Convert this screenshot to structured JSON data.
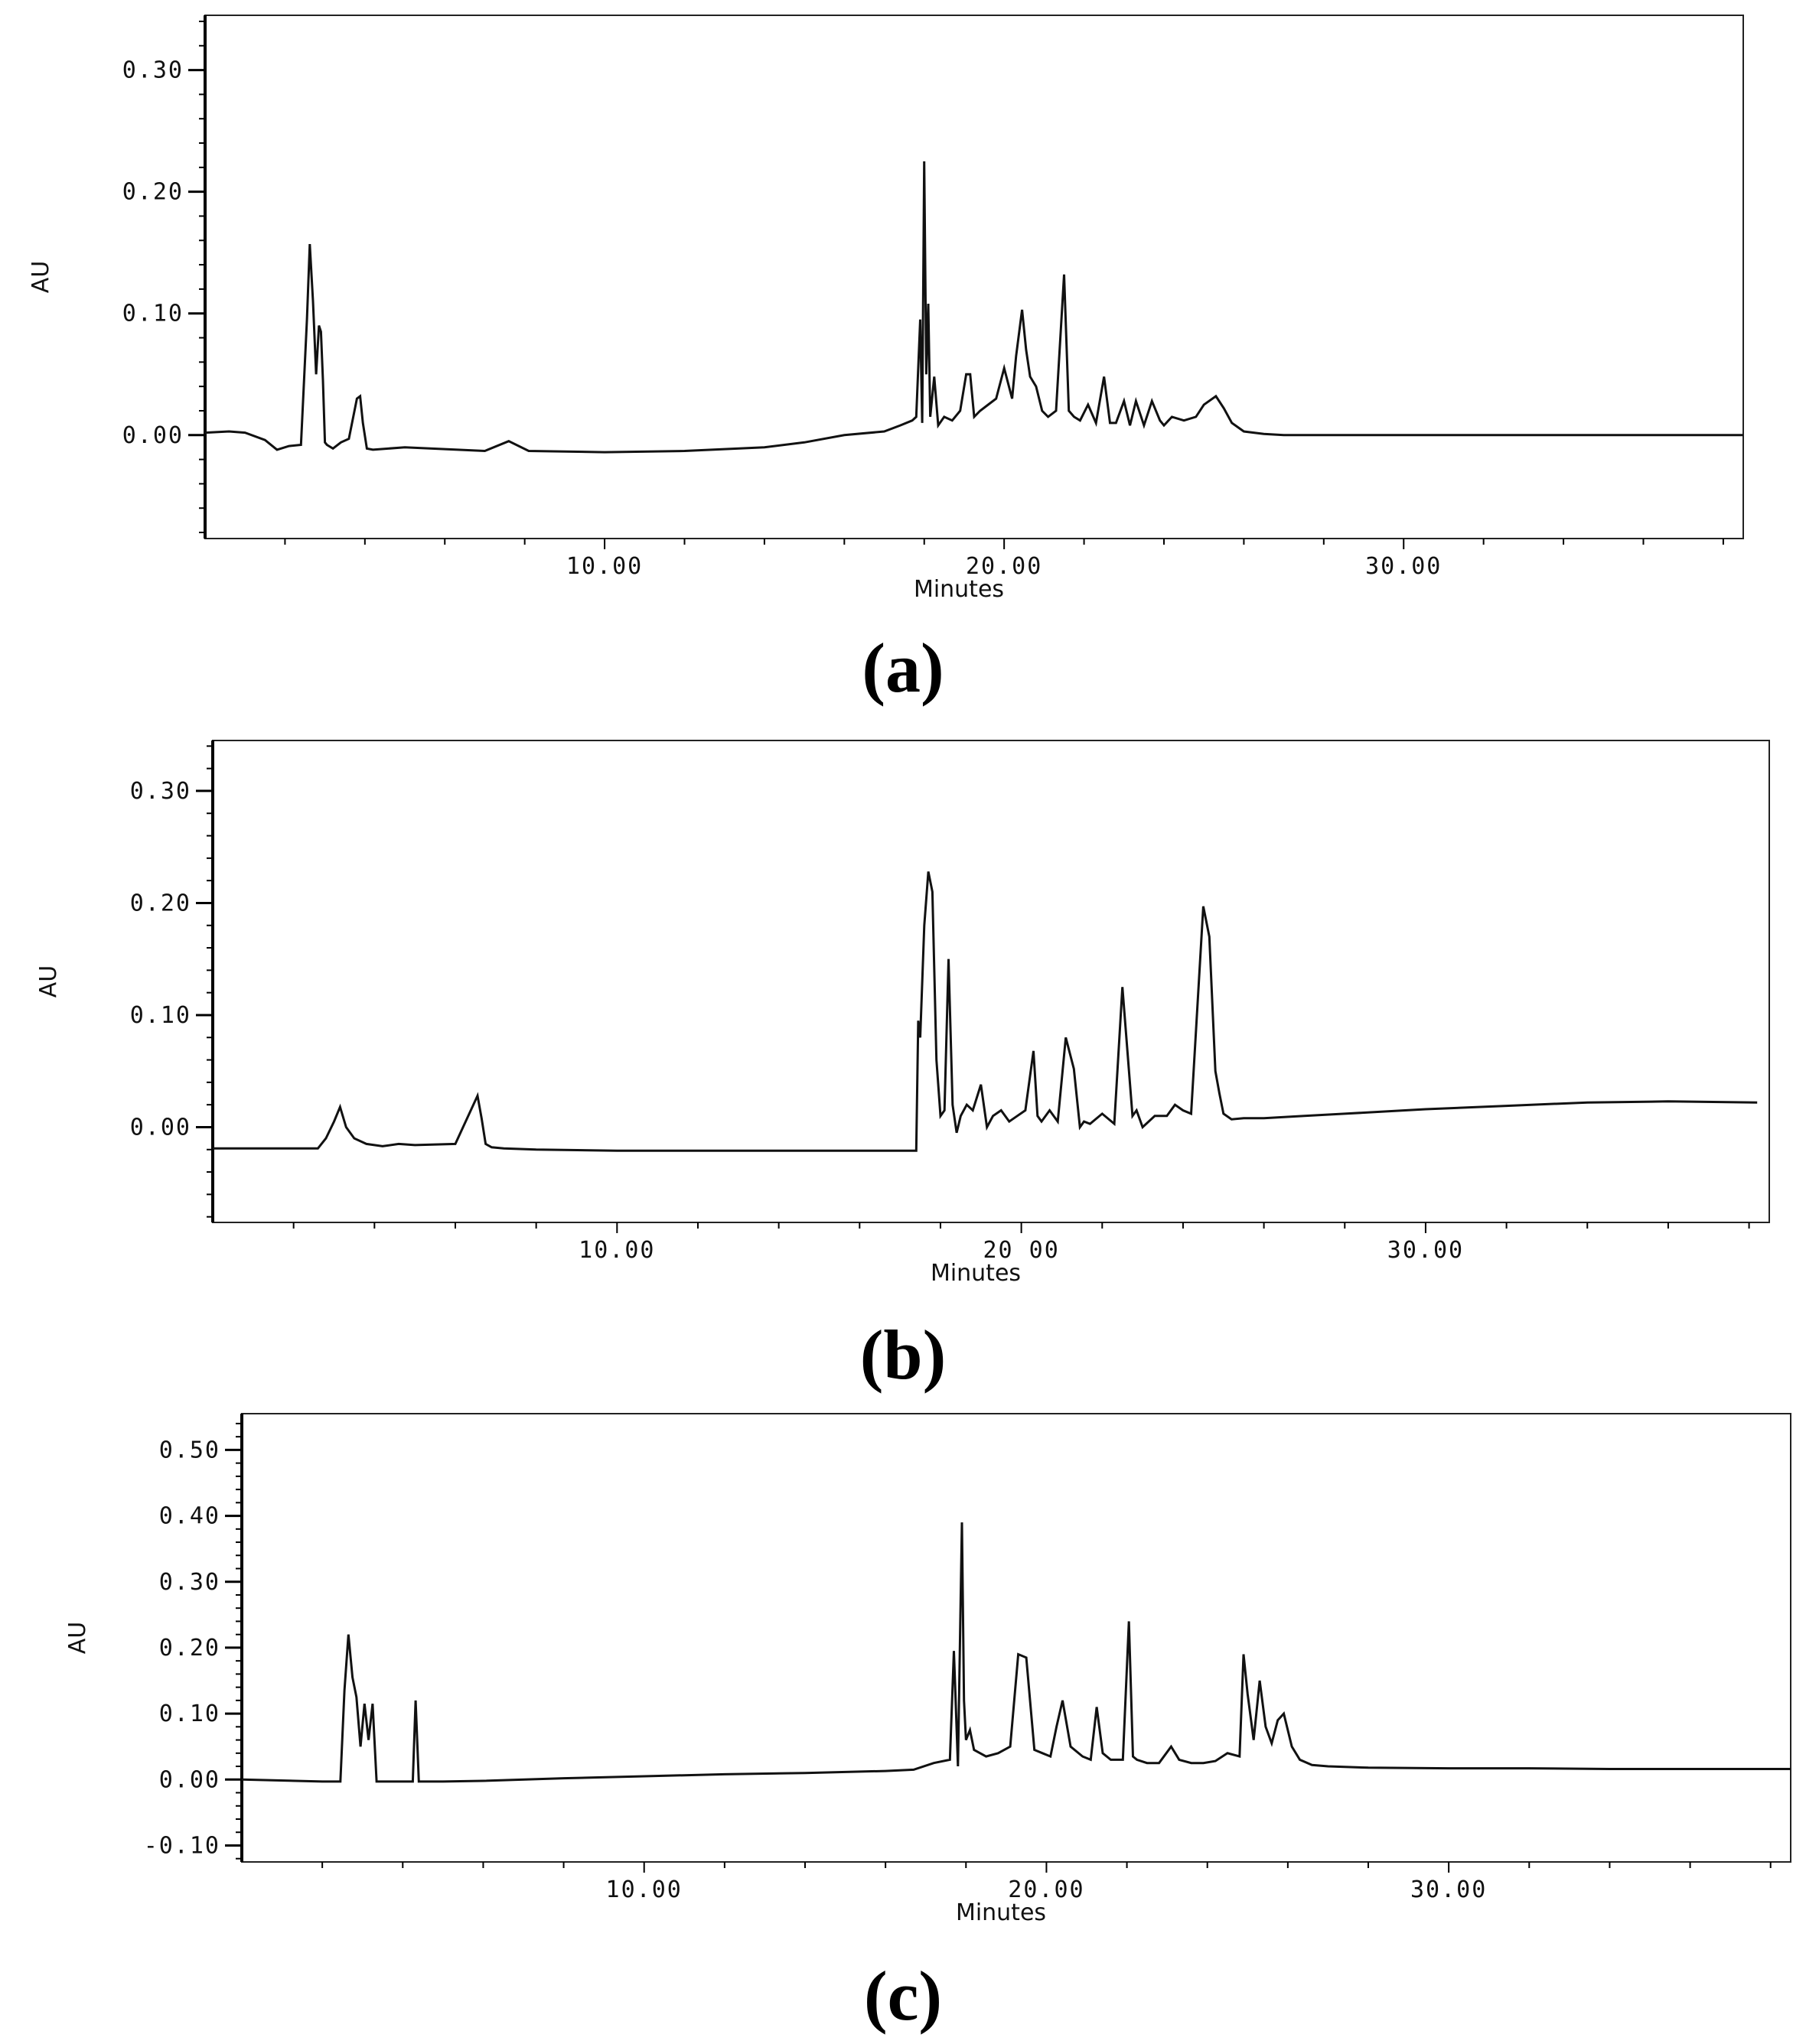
{
  "chart_data": [
    {
      "type": "line",
      "caption": "(a)",
      "xlabel": "Minutes",
      "ylabel": "AU",
      "xlim": [
        0,
        38.5
      ],
      "ylim": [
        -0.085,
        0.345
      ],
      "yticks": [
        0.0,
        0.1,
        0.2,
        0.3
      ],
      "ytick_labels": [
        "0.00",
        "0.10",
        "0.20",
        "0.30"
      ],
      "xticks": [
        10,
        20,
        30
      ],
      "xtick_labels": [
        "10.00",
        "20.00",
        "30.00"
      ],
      "series": [
        {
          "x": [
            0,
            0.6,
            1.0,
            1.5,
            1.8,
            2.1,
            2.4,
            2.55,
            2.62,
            2.7,
            2.78,
            2.85,
            2.9,
            2.95,
            3.0,
            3.05,
            3.1,
            3.2,
            3.4,
            3.6,
            3.8,
            3.88,
            3.95,
            4.05,
            4.2,
            5.0,
            7.0,
            7.6,
            8.1,
            10,
            12,
            14,
            15,
            16,
            17,
            17.4,
            17.7,
            17.8,
            17.9,
            17.95,
            18.0,
            18.05,
            18.1,
            18.15,
            18.25,
            18.35,
            18.5,
            18.7,
            18.9,
            19.05,
            19.15,
            19.25,
            19.4,
            19.6,
            19.8,
            20.0,
            20.2,
            20.3,
            20.45,
            20.55,
            20.65,
            20.8,
            20.95,
            21.1,
            21.3,
            21.5,
            21.62,
            21.75,
            21.9,
            22.1,
            22.3,
            22.5,
            22.65,
            22.8,
            23.0,
            23.15,
            23.3,
            23.5,
            23.7,
            23.9,
            24.0,
            24.2,
            24.5,
            24.8,
            25.0,
            25.3,
            25.5,
            25.7,
            26.0,
            26.5,
            27,
            30,
            35,
            38.5
          ],
          "y": [
            0.002,
            0.003,
            0.002,
            -0.004,
            -0.012,
            -0.009,
            -0.008,
            0.095,
            0.157,
            0.11,
            0.05,
            0.09,
            0.085,
            0.045,
            -0.006,
            -0.008,
            -0.009,
            -0.011,
            -0.006,
            -0.003,
            0.03,
            0.032,
            0.01,
            -0.011,
            -0.012,
            -0.01,
            -0.013,
            -0.005,
            -0.013,
            -0.014,
            -0.013,
            -0.01,
            -0.006,
            0.0,
            0.003,
            0.008,
            0.012,
            0.015,
            0.095,
            0.01,
            0.225,
            0.05,
            0.108,
            0.015,
            0.048,
            0.008,
            0.015,
            0.012,
            0.02,
            0.05,
            0.05,
            0.015,
            0.02,
            0.025,
            0.03,
            0.055,
            0.03,
            0.065,
            0.103,
            0.07,
            0.048,
            0.04,
            0.02,
            0.015,
            0.02,
            0.132,
            0.02,
            0.015,
            0.012,
            0.025,
            0.01,
            0.048,
            0.01,
            0.01,
            0.028,
            0.008,
            0.028,
            0.008,
            0.028,
            0.012,
            0.008,
            0.015,
            0.012,
            0.015,
            0.025,
            0.032,
            0.022,
            0.01,
            0.003,
            0.001,
            0.0,
            0.0,
            0.0,
            0.0
          ]
        }
      ]
    },
    {
      "type": "line",
      "caption": "(b)",
      "xlabel": "Minutes",
      "ylabel": "AU",
      "xlim": [
        0,
        38.5
      ],
      "ylim": [
        -0.085,
        0.345
      ],
      "yticks": [
        0.0,
        0.1,
        0.2,
        0.3
      ],
      "ytick_labels": [
        "0.00",
        "0.10",
        "0.20",
        "0.30"
      ],
      "xticks": [
        10,
        20,
        30
      ],
      "xtick_labels": [
        "10.00",
        "20 00",
        "30.00"
      ],
      "series": [
        {
          "x": [
            0,
            1.5,
            2.6,
            2.8,
            3.0,
            3.15,
            3.3,
            3.5,
            3.8,
            4.2,
            4.6,
            5.0,
            6.0,
            6.55,
            6.65,
            6.75,
            6.9,
            7.2,
            8,
            10,
            12,
            14,
            16,
            17.4,
            17.45,
            17.5,
            17.6,
            17.7,
            17.8,
            17.9,
            18.0,
            18.1,
            18.2,
            18.3,
            18.4,
            18.5,
            18.65,
            18.8,
            19.0,
            19.15,
            19.3,
            19.5,
            19.7,
            19.9,
            20.1,
            20.3,
            20.4,
            20.5,
            20.7,
            20.9,
            21.1,
            21.3,
            21.45,
            21.55,
            21.7,
            22.0,
            22.3,
            22.5,
            22.75,
            22.85,
            23.0,
            23.3,
            23.6,
            23.8,
            24.0,
            24.2,
            24.5,
            24.65,
            24.8,
            24.9,
            25.0,
            25.2,
            25.5,
            26,
            27,
            28,
            30,
            32,
            34,
            36,
            38.2
          ],
          "y": [
            -0.019,
            -0.019,
            -0.019,
            -0.01,
            0.005,
            0.018,
            0.0,
            -0.01,
            -0.015,
            -0.017,
            -0.015,
            -0.016,
            -0.015,
            0.028,
            0.008,
            -0.015,
            -0.018,
            -0.019,
            -0.02,
            -0.021,
            -0.021,
            -0.021,
            -0.021,
            -0.021,
            0.095,
            0.08,
            0.18,
            0.228,
            0.21,
            0.06,
            0.01,
            0.015,
            0.15,
            0.02,
            -0.005,
            0.01,
            0.02,
            0.015,
            0.038,
            0.0,
            0.01,
            0.015,
            0.005,
            0.01,
            0.015,
            0.068,
            0.01,
            0.005,
            0.015,
            0.005,
            0.08,
            0.052,
            0.0,
            0.005,
            0.003,
            0.012,
            0.003,
            0.125,
            0.01,
            0.015,
            0.0,
            0.01,
            0.01,
            0.02,
            0.015,
            0.012,
            0.197,
            0.17,
            0.05,
            0.03,
            0.012,
            0.007,
            0.008,
            0.008,
            0.01,
            0.012,
            0.016,
            0.019,
            0.022,
            0.023,
            0.022
          ]
        }
      ]
    },
    {
      "type": "line",
      "caption": "(c)",
      "xlabel": "Minutes",
      "ylabel": "AU",
      "xlim": [
        0,
        38.5
      ],
      "ylim": [
        -0.125,
        0.555
      ],
      "yticks": [
        -0.1,
        0.0,
        0.1,
        0.2,
        0.3,
        0.4,
        0.5
      ],
      "ytick_labels": [
        "-0.10",
        "0.00",
        "0.10",
        "0.20",
        "0.30",
        "0.40",
        "0.50"
      ],
      "xticks": [
        10,
        20,
        30
      ],
      "xtick_labels": [
        "10.00",
        "20.00",
        "30.00"
      ],
      "series": [
        {
          "x": [
            0,
            2.0,
            2.45,
            2.55,
            2.65,
            2.75,
            2.85,
            2.95,
            3.05,
            3.15,
            3.25,
            3.35,
            3.5,
            4.0,
            4.25,
            4.32,
            4.4,
            5.0,
            6,
            8,
            10,
            12,
            14,
            16,
            16.7,
            17.2,
            17.6,
            17.7,
            17.8,
            17.9,
            17.95,
            18.0,
            18.1,
            18.2,
            18.35,
            18.5,
            18.8,
            19.1,
            19.3,
            19.5,
            19.7,
            19.9,
            20.1,
            20.25,
            20.4,
            20.6,
            20.9,
            21.1,
            21.25,
            21.4,
            21.6,
            21.9,
            22.05,
            22.15,
            22.25,
            22.5,
            22.8,
            23.1,
            23.3,
            23.6,
            23.9,
            24.2,
            24.5,
            24.8,
            24.9,
            25.0,
            25.15,
            25.3,
            25.45,
            25.6,
            25.75,
            25.9,
            26.1,
            26.3,
            26.6,
            27,
            28,
            30,
            32,
            34,
            36,
            38.5
          ],
          "y": [
            0.0,
            -0.003,
            -0.003,
            0.135,
            0.22,
            0.155,
            0.125,
            0.05,
            0.115,
            0.06,
            0.115,
            -0.003,
            -0.003,
            -0.003,
            -0.003,
            0.12,
            -0.003,
            -0.003,
            -0.002,
            0.002,
            0.005,
            0.008,
            0.01,
            0.013,
            0.015,
            0.025,
            0.03,
            0.195,
            0.02,
            0.39,
            0.12,
            0.06,
            0.075,
            0.045,
            0.04,
            0.035,
            0.04,
            0.05,
            0.19,
            0.185,
            0.045,
            0.04,
            0.035,
            0.08,
            0.12,
            0.05,
            0.035,
            0.03,
            0.11,
            0.04,
            0.03,
            0.03,
            0.24,
            0.035,
            0.03,
            0.025,
            0.025,
            0.05,
            0.03,
            0.025,
            0.025,
            0.028,
            0.04,
            0.035,
            0.19,
            0.13,
            0.06,
            0.15,
            0.08,
            0.055,
            0.09,
            0.1,
            0.05,
            0.03,
            0.022,
            0.02,
            0.018,
            0.017,
            0.017,
            0.016,
            0.016,
            0.016
          ]
        }
      ]
    }
  ]
}
